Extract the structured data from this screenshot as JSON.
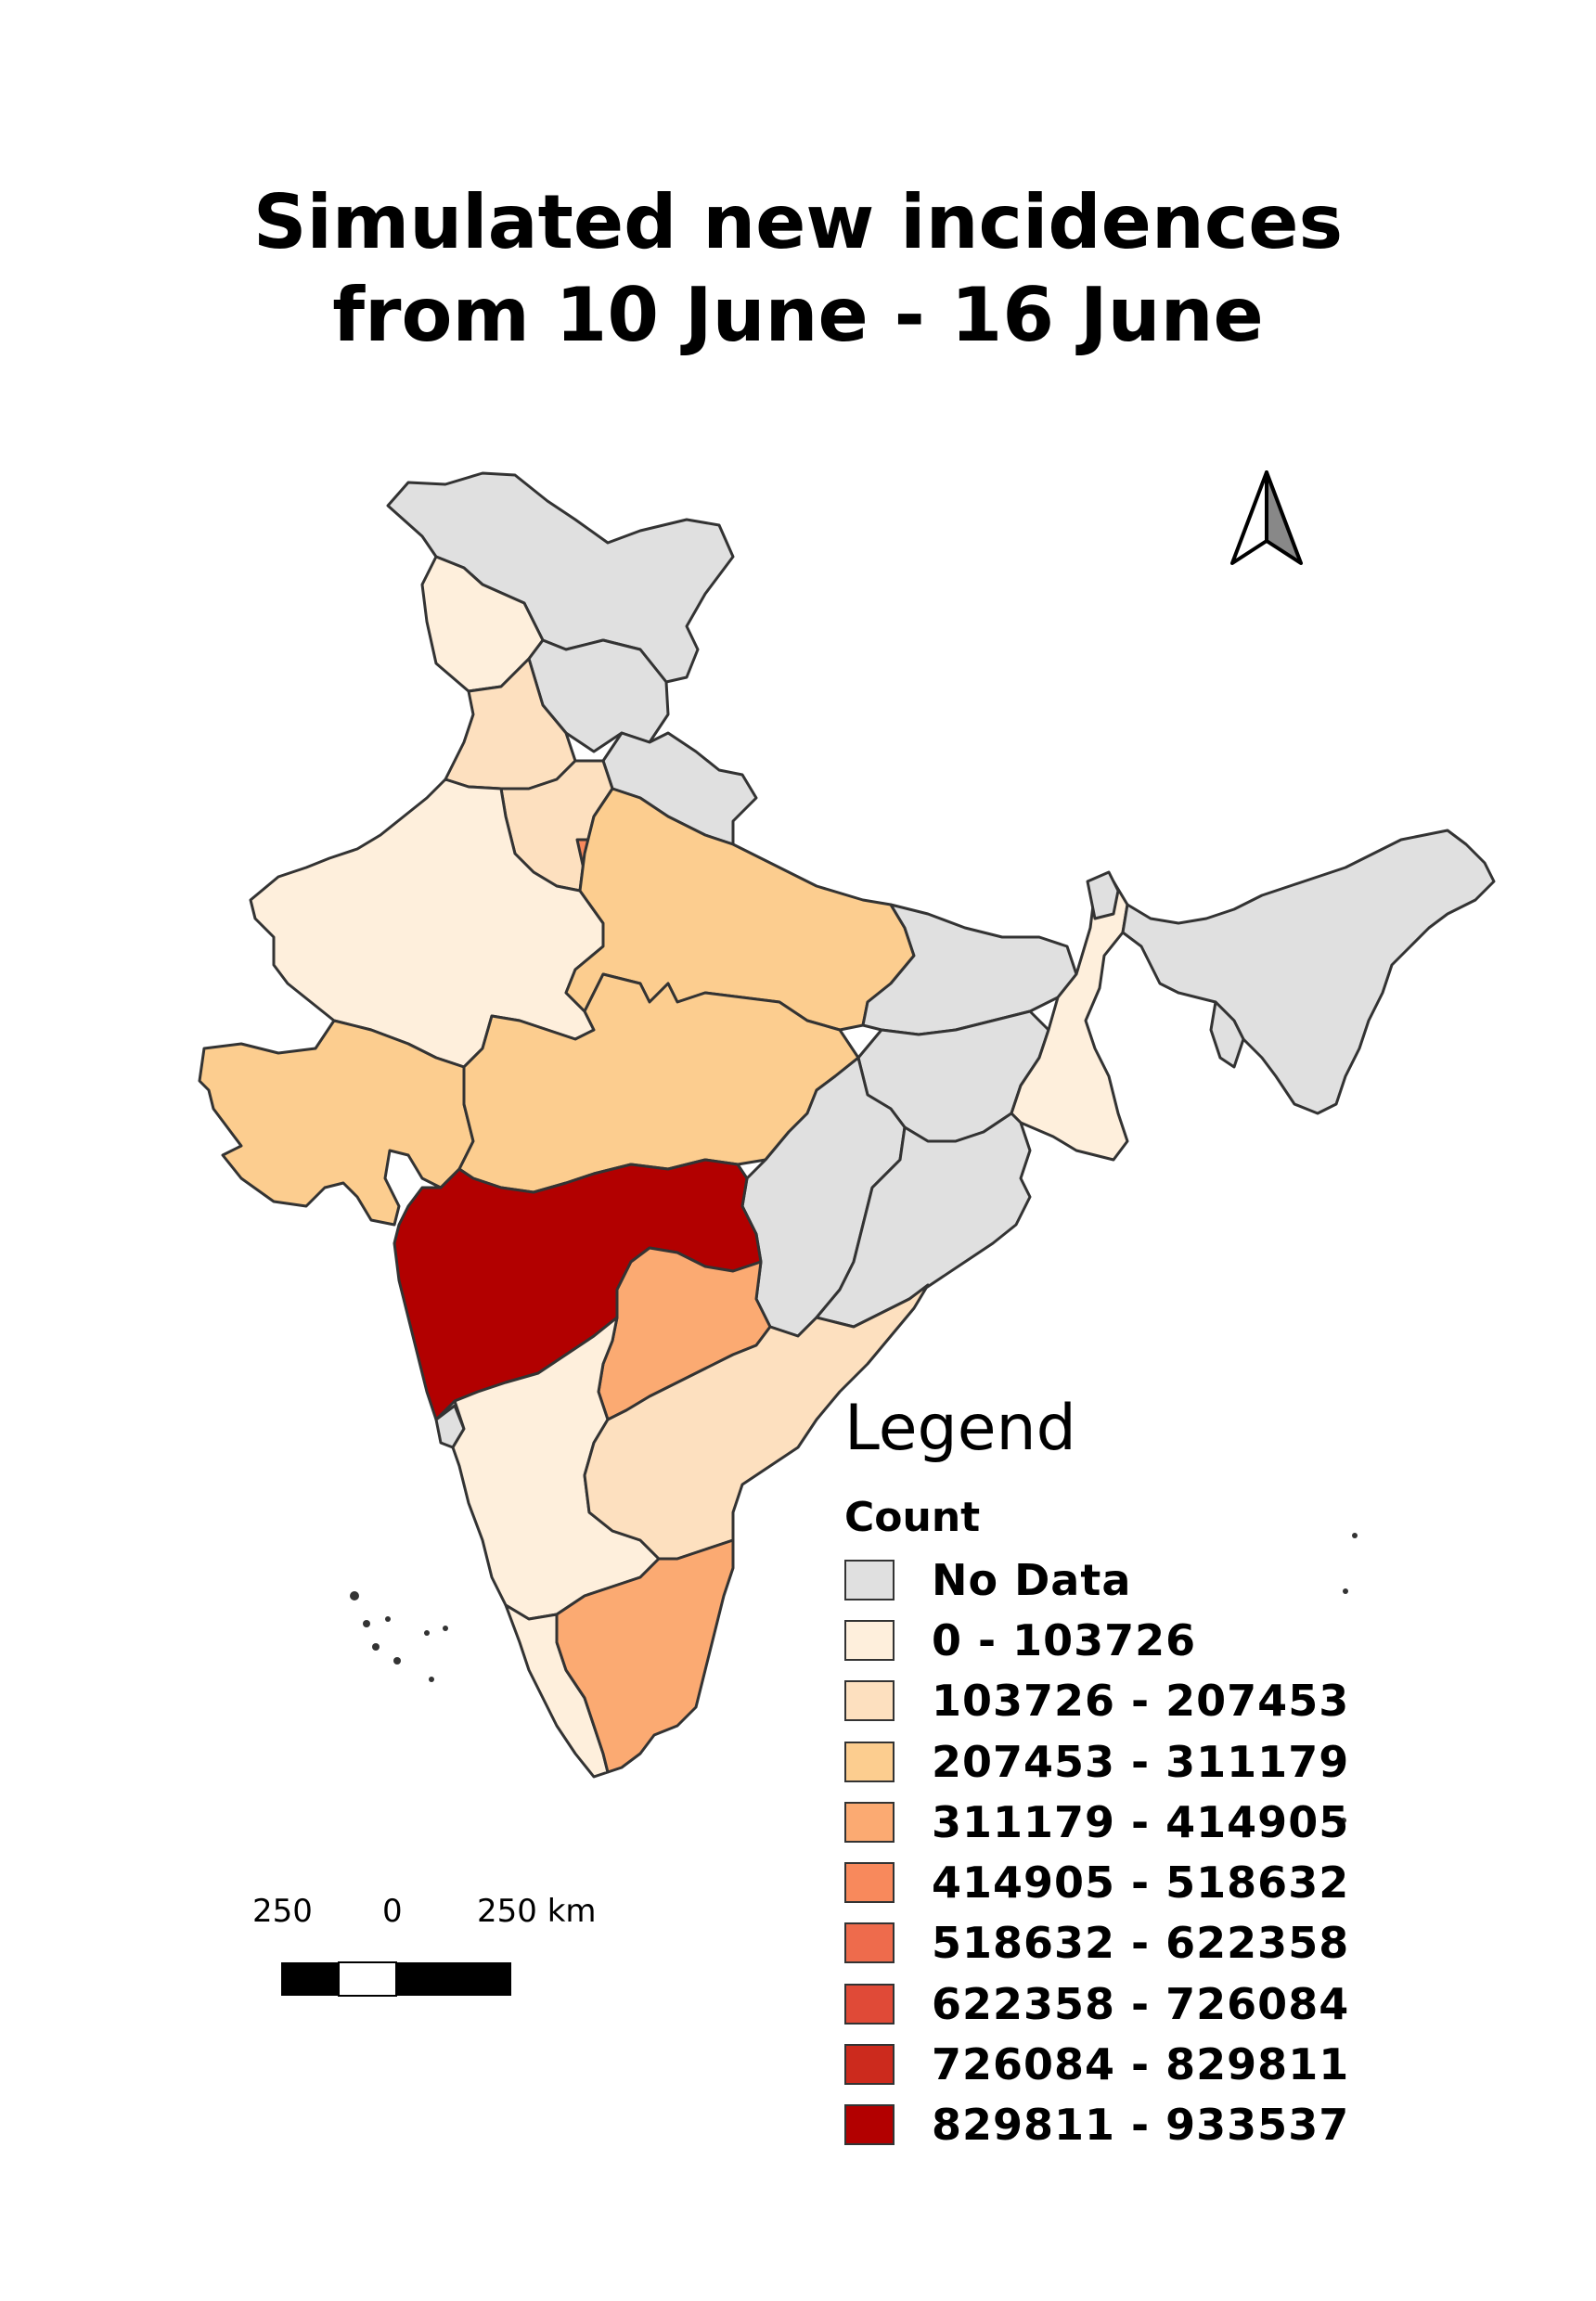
{
  "title": {
    "line1": "Simulated new incidences",
    "line2": "from 10 June - 16 June"
  },
  "legend": {
    "heading": "Legend",
    "subtitle": "Count",
    "items": [
      {
        "label": "No Data",
        "color": "#e0e0e0"
      },
      {
        "label": "0 - 103726",
        "color": "#feefdc"
      },
      {
        "label": "103726 - 207453",
        "color": "#fde0bf"
      },
      {
        "label": "207453 - 311179",
        "color": "#fccd8f"
      },
      {
        "label": "311179 - 414905",
        "color": "#fbaa72"
      },
      {
        "label": "414905 - 518632",
        "color": "#f8895c"
      },
      {
        "label": "518632 - 622358",
        "color": "#ee6b4c"
      },
      {
        "label": "622358 - 726084",
        "color": "#e04a37"
      },
      {
        "label": "726084 - 829811",
        "color": "#cc2a1d"
      },
      {
        "label": "829811 - 933537",
        "color": "#b20000"
      }
    ]
  },
  "scale": {
    "left_label": "250",
    "mid_label": "0",
    "right_label": "250 km"
  },
  "north_arrow_icon": "north-arrow-icon"
}
